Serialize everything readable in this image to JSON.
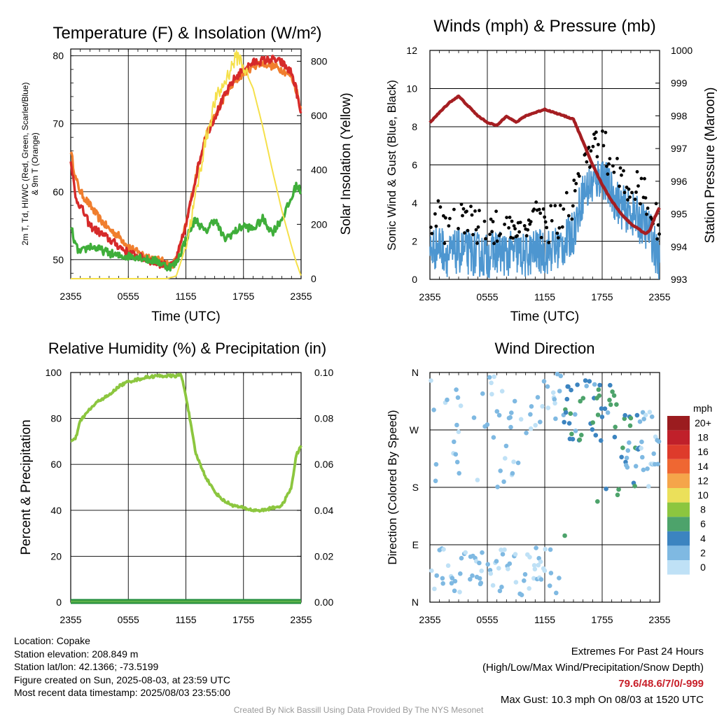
{
  "charts": {
    "temp": {
      "title": "Temperature (F) & Insolation (W/m²)",
      "ylabel_left": [
        "2m T, Td, HI/WC (Red, Green, Scarlet/Blue)",
        "& 9m T (Orange)"
      ],
      "ylabel_right": "Solar Insolation (Yellow)",
      "xlabel": "Time (UTC)"
    },
    "wind": {
      "title": "Winds (mph) & Pressure (mb)",
      "ylabel_left": "Sonic Wind & Gust (Blue, Black)",
      "ylabel_right": "Station Pressure (Maroon)",
      "xlabel": "Time (UTC)"
    },
    "rh": {
      "title": "Relative Humidity (%) & Precipitation (in)",
      "ylabel_left": "Percent & Precipitation"
    },
    "dir": {
      "title": "Wind Direction",
      "ylabel_left": "Direction (Colored By Speed)",
      "legend_unit": "mph"
    }
  },
  "chart_data": [
    {
      "type": "line",
      "id": "temp",
      "title": "Temperature (F) & Insolation (W/m²)",
      "xlabel": "Time (UTC)",
      "ylabel": "2m T, Td, HI/WC (Red, Green, Scarlet/Blue) & 9m T (Orange)",
      "y2label": "Solar Insolation (Yellow)",
      "x_ticks": [
        "2355",
        "0555",
        "1155",
        "1755",
        "2355"
      ],
      "x_hours": [
        0,
        6,
        12,
        18,
        24
      ],
      "ylim": [
        47.2,
        81
      ],
      "y_ticks": [
        50,
        60,
        70,
        80
      ],
      "y2lim": [
        0,
        845
      ],
      "y2_ticks": [
        0,
        200,
        400,
        600,
        800
      ],
      "grid": true,
      "series": [
        {
          "color": "#f07e2e",
          "axis": "left",
          "x": [
            0,
            0.5,
            1,
            2,
            3,
            4,
            5,
            6,
            7,
            8,
            9,
            10,
            10.5,
            11,
            12,
            13,
            14,
            15,
            16,
            17,
            18,
            19,
            20,
            21,
            22,
            23,
            23.5,
            24
          ],
          "y": [
            66,
            62,
            60,
            58,
            56,
            54.5,
            53.5,
            52,
            51,
            50.5,
            50,
            49.5,
            49,
            50,
            55,
            62,
            68,
            71,
            74,
            76,
            77.5,
            78.5,
            79,
            78.5,
            78,
            77,
            75,
            72
          ]
        },
        {
          "color": "#d62a2a",
          "axis": "left",
          "x": [
            0,
            0.5,
            1,
            2,
            3,
            4,
            5,
            6,
            7,
            8,
            9,
            10,
            10.5,
            11,
            12,
            13,
            14,
            15,
            16,
            17,
            18,
            19,
            20,
            21,
            22,
            23,
            23.5,
            24
          ],
          "y": [
            65,
            59,
            58,
            55,
            54,
            53,
            52,
            51,
            50.5,
            50,
            49.5,
            49.2,
            49,
            50,
            55,
            62,
            68,
            71,
            74,
            76.5,
            78,
            79,
            79.3,
            79.5,
            79,
            77.5,
            75,
            71
          ]
        },
        {
          "color": "#3fae3a",
          "axis": "left",
          "x": [
            0,
            0.5,
            1,
            2,
            3,
            4,
            5,
            6,
            7,
            8,
            9,
            10,
            10.5,
            11,
            12,
            13,
            13.5,
            14,
            15,
            16,
            17,
            18,
            19,
            20,
            21,
            22,
            23,
            23.5,
            24
          ],
          "y": [
            55,
            52,
            51,
            52,
            51.5,
            51,
            50.5,
            50.5,
            50.5,
            50,
            49.8,
            49,
            49,
            49.5,
            53,
            56,
            55,
            54,
            56,
            53,
            54,
            55,
            54.5,
            56,
            54,
            56,
            59,
            61,
            60
          ]
        },
        {
          "color": "#f5e04a",
          "axis": "right",
          "x": [
            0,
            1,
            2,
            3,
            4,
            5,
            6,
            7,
            8,
            9,
            10,
            11,
            12,
            13,
            14,
            15,
            16,
            17,
            17.5,
            18,
            19,
            20,
            21,
            22,
            23,
            23.5,
            24
          ],
          "y": [
            0,
            0,
            0,
            0,
            0,
            0,
            0,
            0,
            0,
            0,
            0,
            10,
            120,
            300,
            500,
            650,
            720,
            800,
            820,
            780,
            700,
            560,
            400,
            250,
            120,
            60,
            10
          ]
        }
      ]
    },
    {
      "type": "line",
      "id": "wind",
      "title": "Winds (mph) & Pressure (mb)",
      "xlabel": "Time (UTC)",
      "ylabel": "Sonic Wind & Gust (Blue, Black)",
      "y2label": "Station Pressure (Maroon)",
      "x_ticks": [
        "2355",
        "0555",
        "1155",
        "1755",
        "2355"
      ],
      "x_hours": [
        0,
        6,
        12,
        18,
        24
      ],
      "ylim": [
        0,
        12
      ],
      "y_ticks": [
        0,
        2,
        4,
        6,
        8,
        10,
        12
      ],
      "y2lim": [
        993,
        1000
      ],
      "y2_ticks": [
        993,
        994,
        995,
        996,
        997,
        998,
        999,
        1000
      ],
      "grid": true,
      "series": [
        {
          "color": "#4d96d0",
          "axis": "left",
          "x": [
            0,
            1,
            2,
            3,
            4,
            5,
            6,
            7,
            8,
            9,
            10,
            11,
            12,
            13,
            14,
            15,
            16,
            17,
            18,
            19,
            20,
            21,
            22,
            23,
            24
          ],
          "y": [
            1.5,
            1.8,
            1.2,
            1.5,
            1.4,
            1.3,
            1.2,
            1.5,
            1.3,
            1.4,
            1.2,
            1.5,
            1.4,
            1.6,
            1.8,
            2.5,
            4.5,
            5,
            5.5,
            4.5,
            3.8,
            3.5,
            3,
            2.5,
            0.8
          ]
        },
        {
          "color": "#a51e22",
          "axis": "right",
          "x": [
            0,
            1,
            2,
            3,
            4,
            5,
            6,
            7,
            8,
            9,
            10,
            11,
            12,
            13,
            14,
            15,
            16,
            17,
            18,
            19,
            20,
            21,
            22,
            22.5,
            23,
            23.5,
            24
          ],
          "y": [
            997.8,
            998.1,
            998.4,
            998.6,
            998.3,
            998.0,
            997.8,
            997.7,
            998.0,
            997.8,
            998.0,
            998.1,
            998.2,
            998.1,
            998.0,
            997.9,
            997.2,
            996.5,
            995.9,
            995.4,
            995.0,
            994.7,
            994.5,
            994.4,
            994.5,
            994.9,
            995.2
          ]
        }
      ]
    },
    {
      "type": "line",
      "id": "rh",
      "title": "Relative Humidity (%) & Precipitation (in)",
      "ylabel": "Percent & Precipitation",
      "x_ticks": [
        "2355",
        "0555",
        "1155",
        "1755",
        "2355"
      ],
      "x_hours": [
        0,
        6,
        12,
        18,
        24
      ],
      "ylim": [
        0,
        100
      ],
      "y_ticks": [
        0,
        20,
        40,
        60,
        80,
        100
      ],
      "y2lim": [
        0,
        0.1
      ],
      "y2_ticks": [
        "0.00",
        "0.02",
        "0.04",
        "0.06",
        "0.08",
        "0.10"
      ],
      "grid": true,
      "series": [
        {
          "color": "#8cc63f",
          "axis": "left",
          "x": [
            0,
            0.5,
            1,
            2,
            3,
            4,
            5,
            6,
            7,
            8,
            9,
            10,
            11,
            11.5,
            12,
            13,
            14,
            15,
            16,
            17,
            18,
            19,
            20,
            21,
            22,
            23,
            23.5,
            24
          ],
          "y": [
            70,
            71,
            79,
            84,
            88,
            90,
            94,
            96,
            97,
            98,
            98.5,
            98.5,
            98.5,
            99,
            90,
            65,
            55,
            48,
            44,
            42,
            41,
            40,
            40,
            41,
            42,
            50,
            64,
            68
          ]
        },
        {
          "color": "#1e8b3a",
          "axis": "right",
          "x": [
            0,
            24
          ],
          "y": [
            0,
            0
          ]
        }
      ]
    },
    {
      "type": "scatter",
      "id": "dir",
      "title": "Wind Direction",
      "ylabel": "Direction (Colored By Speed)",
      "x_ticks": [
        "2355",
        "0555",
        "1155",
        "1755",
        "2355"
      ],
      "x_hours": [
        0,
        6,
        12,
        18,
        24
      ],
      "y_ticks": [
        "N",
        "E",
        "S",
        "W",
        "N"
      ],
      "y_degrees": [
        0,
        90,
        180,
        270,
        360
      ],
      "grid": true,
      "legend_unit": "mph",
      "legend": [
        {
          "label": "20+",
          "color": "#9b1c1f"
        },
        {
          "label": "18",
          "color": "#c0202a"
        },
        {
          "label": "16",
          "color": "#de3b2b"
        },
        {
          "label": "14",
          "color": "#ef6732"
        },
        {
          "label": "12",
          "color": "#f5a54a"
        },
        {
          "label": "10",
          "color": "#ebe05a"
        },
        {
          "label": "8",
          "color": "#8cc63f"
        },
        {
          "label": "6",
          "color": "#4da36b"
        },
        {
          "label": "4",
          "color": "#3c84c0"
        },
        {
          "label": "2",
          "color": "#7fb9e2"
        },
        {
          "label": "0",
          "color": "#bfe1f6"
        }
      ]
    }
  ],
  "info_left": {
    "location": "Location: Copake",
    "elevation": "Station elevation: 208.849 m",
    "latlon": "Station lat/lon: 42.1366; -73.5199",
    "created": "Figure created on Sun, 2025-08-03, at 23:59 UTC",
    "recent": "Most recent data timestamp: 2025/08/03 23:55:00"
  },
  "info_right": {
    "title": "Extremes For Past 24 Hours",
    "subtitle": "(High/Low/Max Wind/Precipitation/Snow Depth)",
    "values": "79.6/48.6/7/0/-999",
    "gust": "Max Gust: 10.3 mph On 08/03 at 1520 UTC"
  },
  "credit": "Created By Nick Bassill Using Data Provided By The NYS Mesonet"
}
